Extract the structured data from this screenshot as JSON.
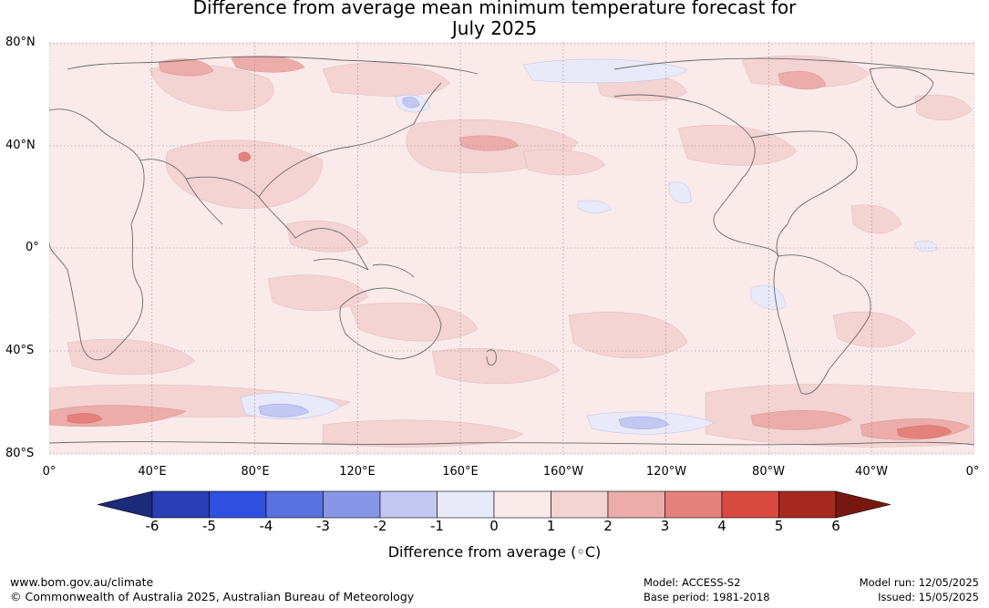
{
  "title": {
    "line1": "Difference from average mean minimum temperature forecast for",
    "line2": "July 2025"
  },
  "axes": {
    "lat_labels": [
      "80°N",
      "40°N",
      "0°",
      "40°S",
      "80°S"
    ],
    "lon_labels": [
      "0°",
      "40°E",
      "80°E",
      "120°E",
      "160°E",
      "160°W",
      "120°W",
      "80°W",
      "40°W",
      "0°"
    ]
  },
  "colorbar": {
    "ticks": [
      "-6",
      "-5",
      "-4",
      "-3",
      "-2",
      "-1",
      "0",
      "1",
      "2",
      "3",
      "4",
      "5",
      "6"
    ],
    "colors": [
      "#1c2a7a",
      "#2a3eb6",
      "#2f4fe0",
      "#5a72e0",
      "#8896e8",
      "#c2c8f2",
      "#e8eafa",
      "#fbeaea",
      "#f4d3d3",
      "#ecacaa",
      "#e5817c",
      "#d84a40",
      "#a8291f",
      "#761811"
    ],
    "label": "Difference from average (◦C)"
  },
  "map_layers": {
    "ocean_base_color": "#fbeaea",
    "grid_color": "#8a8a8a",
    "coast_color": "#6b6b6b",
    "anomaly_palette": {
      "plus_1_to_2": "#f4d3d3",
      "plus_2_to_3": "#ecacaa",
      "plus_3_to_4": "#e5817c",
      "plus_4_to_5": "#d84a40",
      "minus_0_to_1": "#e8eafa",
      "minus_1_to_2": "#c2c8f2",
      "minus_2_to_3": "#8896e8"
    }
  },
  "footer": {
    "website": "www.bom.gov.au/climate",
    "copyright": "© Commonwealth of Australia 2025, Australian Bureau of Meteorology",
    "model": "Model: ACCESS-S2",
    "base_period": "Base period: 1981-2018",
    "model_run": "Model run: 12/05/2025",
    "issued": "Issued: 15/05/2025"
  }
}
